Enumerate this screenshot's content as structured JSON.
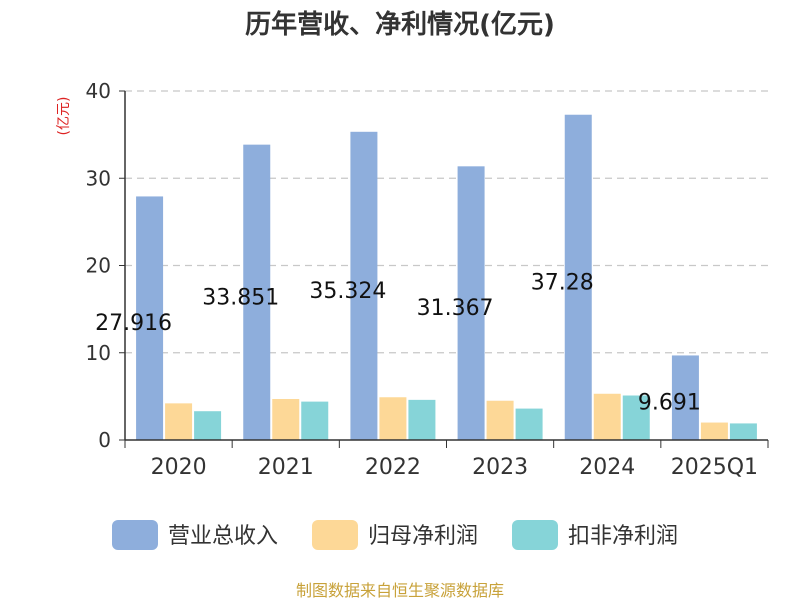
{
  "chart_data": {
    "type": "bar",
    "title": "历年营收、净利情况(亿元)",
    "ylabel": "(亿元)",
    "xlabel": "",
    "categories": [
      "2020",
      "2021",
      "2022",
      "2023",
      "2024",
      "2025Q1"
    ],
    "ylim": [
      0,
      40
    ],
    "yticks": [
      0,
      10,
      20,
      30,
      40
    ],
    "grid": true,
    "legend_position": "bottom",
    "series": [
      {
        "name": "营业总收入",
        "color": "#8eaedc",
        "values": [
          27.916,
          33.851,
          35.324,
          31.367,
          37.28,
          9.691
        ],
        "show_labels": true
      },
      {
        "name": "归母净利润",
        "color": "#fdd897",
        "values": [
          4.2,
          4.7,
          4.9,
          4.5,
          5.3,
          2.0
        ],
        "show_labels": false
      },
      {
        "name": "扣非净利润",
        "color": "#86d4d8",
        "values": [
          3.3,
          4.4,
          4.6,
          3.6,
          5.1,
          1.9
        ],
        "show_labels": false
      }
    ]
  },
  "source": {
    "text": "制图数据来自恒生聚源数据库",
    "color": "#c8a23a"
  },
  "ylabel_color": "#dd2222"
}
